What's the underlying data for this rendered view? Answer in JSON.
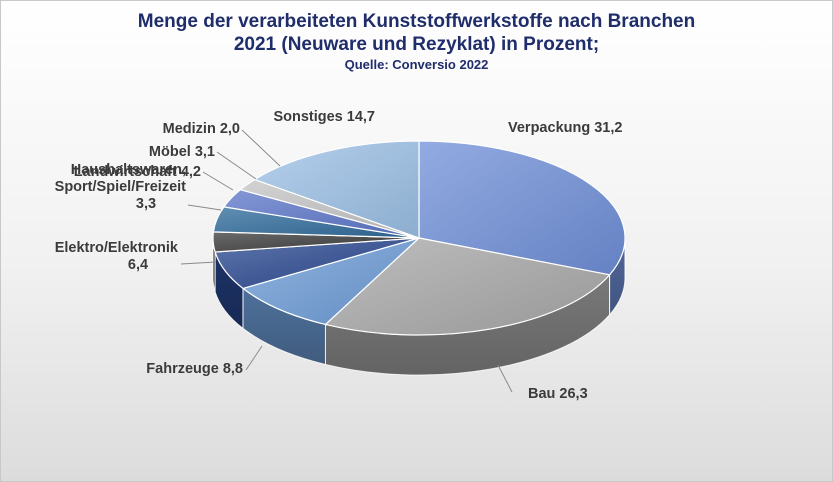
{
  "chart_data": {
    "type": "pie",
    "title_line1": "Menge der verarbeiteten Kunststoffwerkstoffe nach Branchen",
    "title_line2": "2021 (Neuware  und Rezyklat) in Prozent;",
    "subtitle": "Quelle: Conversio 2022",
    "slices": [
      {
        "label": "Verpackung",
        "value": 31.2,
        "value_text": "31,2",
        "color": "#6f8fd8"
      },
      {
        "label": "Bau",
        "value": 26.3,
        "value_text": "26,3",
        "color": "#a8a8a8"
      },
      {
        "label": "Fahrzeuge",
        "value": 8.8,
        "value_text": "8,8",
        "color": "#6c9bd6"
      },
      {
        "label": "Elektro/Elektronik",
        "value": 6.4,
        "value_text": "6,4",
        "color": "#28478f"
      },
      {
        "label": "Haushaltswaren, Sport/Spiel/Freizeit",
        "value": 3.3,
        "value_text": "3,3",
        "color": "#3a3a3a"
      },
      {
        "label": "Landwirtschaft",
        "value": 4.2,
        "value_text": "4,2",
        "color": "#2d6a9a"
      },
      {
        "label": "Möbel",
        "value": 3.1,
        "value_text": "3,1",
        "color": "#5b75c8"
      },
      {
        "label": "Medizin",
        "value": 2.0,
        "value_text": "2,0",
        "color": "#c4c4c4"
      },
      {
        "label": "Sonstiges",
        "value": 14.7,
        "value_text": "14,7",
        "color": "#9cc0e6"
      }
    ],
    "legend": "none"
  }
}
